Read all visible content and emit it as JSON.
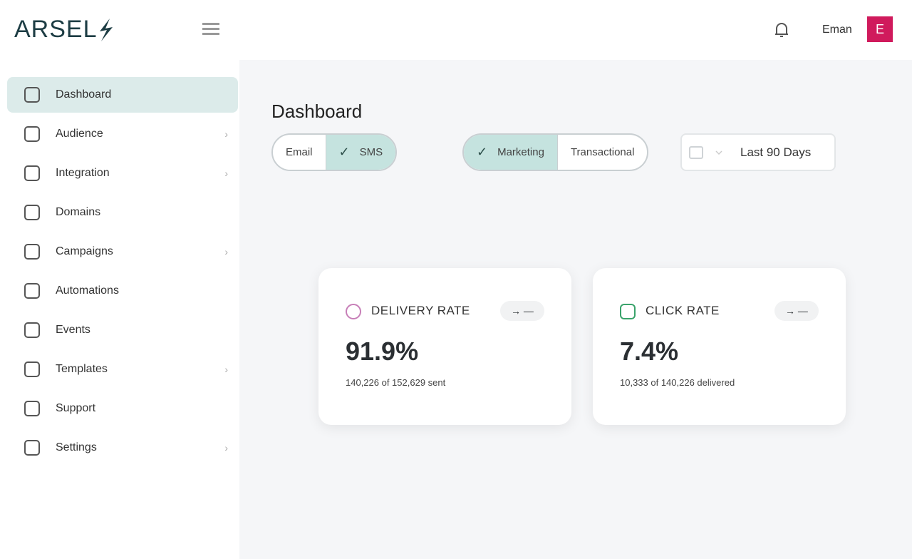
{
  "brand": {
    "name": "ARSEL"
  },
  "nav": [
    {
      "label": "Dashboard",
      "active": true,
      "expandable": false
    },
    {
      "label": "Audience",
      "active": false,
      "expandable": true
    },
    {
      "label": "Integration",
      "active": false,
      "expandable": true
    },
    {
      "label": "Domains",
      "active": false,
      "expandable": false
    },
    {
      "label": "Campaigns",
      "active": false,
      "expandable": true
    },
    {
      "label": "Automations",
      "active": false,
      "expandable": false
    },
    {
      "label": "Events",
      "active": false,
      "expandable": false
    },
    {
      "label": "Templates",
      "active": false,
      "expandable": true
    },
    {
      "label": "Support",
      "active": false,
      "expandable": false
    },
    {
      "label": "Settings",
      "active": false,
      "expandable": true
    }
  ],
  "header": {
    "user": "Eman",
    "avatar": "E"
  },
  "page": {
    "title": "Dashboard"
  },
  "filters": [
    {
      "options": [
        {
          "label": "Email",
          "selected": false
        },
        {
          "label": "SMS",
          "selected": true
        }
      ]
    },
    {
      "options": [
        {
          "label": "Marketing",
          "selected": true
        },
        {
          "label": "Transactional",
          "selected": false
        }
      ]
    }
  ],
  "date_range": "Last 90 Days",
  "cards": [
    {
      "title": "DELIVERY RATE",
      "trend": "→ —",
      "value": "91.9%",
      "detail": "140,226 of 152,629 sent"
    },
    {
      "title": "CLICK RATE",
      "trend": "→ —",
      "value": "7.4%",
      "detail": "10,333 of 140,226 delivered"
    }
  ]
}
